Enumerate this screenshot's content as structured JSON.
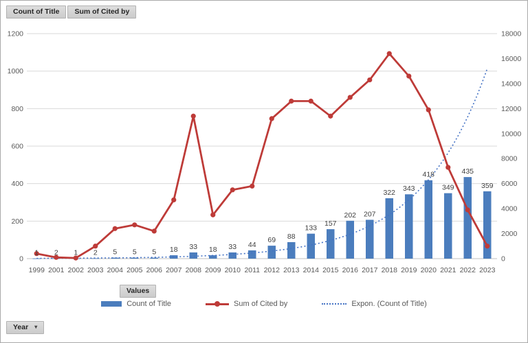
{
  "field_buttons": {
    "count_of_title": "Count of Title",
    "sum_of_cited_by": "Sum of Cited by"
  },
  "values_button_label": "Values",
  "year_button": {
    "label": "Year",
    "arrow": "▾"
  },
  "colors": {
    "bar": "#4b7dbd",
    "cited_line": "#be3b38",
    "trendline": "#4472c4",
    "gridline": "#d9d9d9",
    "axis_line": "#bfbfbf",
    "axis_text": "#595959",
    "data_label_text": "#3f3f3f"
  },
  "chart_data": {
    "type": "bar",
    "subtype": "combo-bar-line-trendline",
    "grid": true,
    "legend_position": "bottom",
    "categories": [
      "1999",
      "2001",
      "2002",
      "2003",
      "2004",
      "2005",
      "2006",
      "2007",
      "2008",
      "2009",
      "2010",
      "2011",
      "2012",
      "2013",
      "2014",
      "2015",
      "2016",
      "2017",
      "2018",
      "2019",
      "2020",
      "2021",
      "2022",
      "2023"
    ],
    "series": [
      {
        "name": "Count of Title",
        "type": "bar",
        "axis": "left",
        "color": "#4b7dbd",
        "show_data_labels": true,
        "values": [
          1,
          2,
          1,
          2,
          5,
          5,
          5,
          18,
          33,
          18,
          33,
          44,
          69,
          88,
          133,
          157,
          202,
          207,
          322,
          343,
          418,
          349,
          435,
          359
        ]
      },
      {
        "name": "Sum of Cited by",
        "type": "line",
        "axis": "right",
        "color": "#be3b38",
        "show_data_labels": false,
        "values": [
          400,
          100,
          50,
          1000,
          2400,
          2700,
          2200,
          4700,
          11400,
          3500,
          5500,
          5800,
          11200,
          12600,
          12600,
          11400,
          12900,
          14300,
          16400,
          14600,
          11900,
          7300,
          3900,
          1000
        ]
      },
      {
        "name": "Expon. (Count of Title)",
        "type": "trendline",
        "axis": "left",
        "style": "dotted",
        "color": "#4472c4",
        "fit": {
          "a": 1.2,
          "b": 0.293
        }
      }
    ],
    "axes": {
      "left": {
        "min": 0,
        "max": 1200,
        "step": 200,
        "tick_labels": [
          "0",
          "200",
          "400",
          "600",
          "800",
          "1000",
          "1200"
        ]
      },
      "right": {
        "min": 0,
        "max": 18000,
        "step": 2000,
        "tick_labels": [
          "0",
          "2000",
          "4000",
          "6000",
          "8000",
          "10000",
          "12000",
          "14000",
          "16000",
          "18000"
        ]
      }
    }
  }
}
